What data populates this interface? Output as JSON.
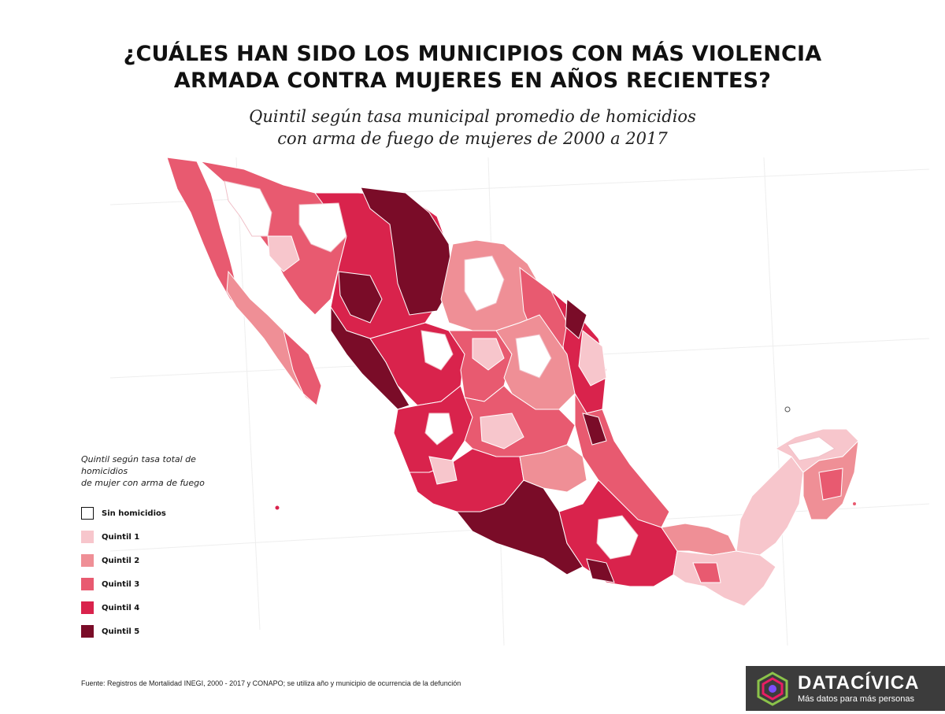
{
  "title_line1": "¿CUÁLES HAN SIDO LOS MUNICIPIOS CON MÁS VIOLENCIA",
  "title_line2": "ARMADA CONTRA MUJERES EN AÑOS RECIENTES?",
  "subtitle_line1": "Quintil según tasa municipal promedio de homicidios",
  "subtitle_line2": "con arma de fuego de mujeres de 2000 a 2017",
  "legend": {
    "title_line1": "Quintil según tasa total de homicidios",
    "title_line2": "de mujer con arma de fuego",
    "items": [
      {
        "label": "Sin homicidios",
        "color": "#ffffff"
      },
      {
        "label": "Quintil 1",
        "color": "#f7c6cc"
      },
      {
        "label": "Quintil 2",
        "color": "#ef8f96"
      },
      {
        "label": "Quintil 3",
        "color": "#e85a70"
      },
      {
        "label": "Quintil 4",
        "color": "#d9234c"
      },
      {
        "label": "Quintil 5",
        "color": "#7a0c28"
      }
    ]
  },
  "source": "Fuente: Registros de Mortalidad INEGI, 2000 - 2017 y CONAPO; se utiliza año y municipio de ocurrencia de la defunción",
  "brand": {
    "name": "DATACÍVICA",
    "tagline": "Más datos para más personas",
    "bg_color": "#3c3c3c"
  }
}
